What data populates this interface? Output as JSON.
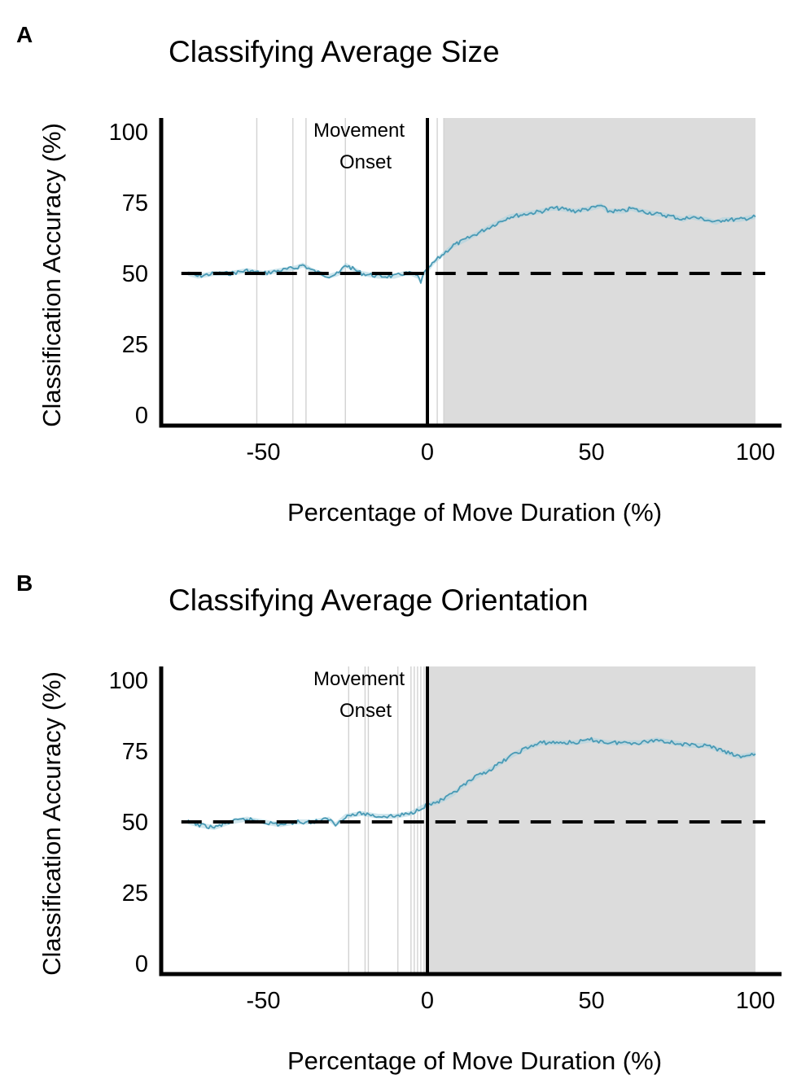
{
  "chart_data": [
    {
      "type": "line",
      "panel": "A",
      "title": "Classifying Average Size",
      "xlabel": "Percentage of Move Duration (%)",
      "ylabel": "Classification Accuracy (%)",
      "xlim": [
        -80,
        108
      ],
      "ylim": [
        0,
        105
      ],
      "xticks": [
        -50,
        0,
        50,
        100
      ],
      "yticks": [
        0,
        25,
        50,
        75,
        100
      ],
      "xtick_labels": [
        "-50",
        "0",
        "50",
        "100"
      ],
      "ytick_labels": [
        "0",
        "25",
        "50",
        "75",
        "100"
      ],
      "chance_level": 50,
      "onset_x": 0,
      "annotation_lines": [
        "Movement",
        "Onset"
      ],
      "significant_shade": [
        5,
        100
      ],
      "significant_lines": [
        -52,
        -41,
        -37,
        -25,
        3,
        5
      ],
      "series": [
        {
          "color": "#4a9ab5",
          "x": [
            -73,
            -70,
            -65,
            -60,
            -55,
            -50,
            -45,
            -40,
            -38,
            -35,
            -30,
            -27,
            -25,
            -20,
            -15,
            -10,
            -7,
            -5,
            -3,
            -2,
            -1,
            0,
            2,
            5,
            8,
            10,
            15,
            20,
            25,
            30,
            35,
            38,
            40,
            45,
            50,
            53,
            55,
            60,
            62,
            65,
            70,
            75,
            78,
            80,
            85,
            88,
            90,
            95,
            100
          ],
          "y": [
            50,
            49,
            50,
            50,
            51,
            50,
            51,
            52,
            53,
            51,
            49,
            50,
            53,
            50,
            49,
            49,
            50,
            50,
            49,
            47,
            50,
            51,
            54,
            57,
            60,
            61,
            64,
            67,
            70,
            71,
            72,
            73,
            73,
            72,
            73,
            74,
            72,
            72,
            73,
            72,
            71,
            70,
            69,
            70,
            69,
            68,
            69,
            69,
            70
          ]
        }
      ]
    },
    {
      "type": "line",
      "panel": "B",
      "title": "Classifying Average Orientation",
      "xlabel": "Percentage of Move Duration (%)",
      "ylabel": "Classification Accuracy (%)",
      "xlim": [
        -80,
        108
      ],
      "ylim": [
        0,
        105
      ],
      "xticks": [
        -50,
        0,
        50,
        100
      ],
      "yticks": [
        0,
        25,
        50,
        75,
        100
      ],
      "xtick_labels": [
        "-50",
        "0",
        "50",
        "100"
      ],
      "ytick_labels": [
        "0",
        "25",
        "50",
        "75",
        "100"
      ],
      "chance_level": 50,
      "onset_x": 0,
      "annotation_lines": [
        "Movement",
        "Onset"
      ],
      "significant_shade": [
        0,
        100
      ],
      "significant_lines": [
        -24,
        -19,
        -18,
        -9,
        -5,
        -4,
        -3,
        -2,
        -1
      ],
      "series": [
        {
          "color": "#4a9ab5",
          "x": [
            -73,
            -70,
            -65,
            -60,
            -55,
            -50,
            -45,
            -40,
            -35,
            -30,
            -28,
            -25,
            -20,
            -15,
            -10,
            -5,
            -2,
            0,
            3,
            5,
            8,
            10,
            15,
            20,
            25,
            30,
            35,
            40,
            45,
            50,
            55,
            60,
            65,
            70,
            75,
            80,
            85,
            90,
            95,
            100
          ],
          "y": [
            50,
            49,
            48,
            50,
            51,
            50,
            49,
            50,
            50,
            51,
            49,
            52,
            53,
            52,
            52,
            53,
            55,
            56,
            57,
            58,
            60,
            62,
            66,
            69,
            73,
            76,
            78,
            78,
            78,
            79,
            78,
            78,
            78,
            79,
            78,
            77,
            77,
            75,
            73,
            74
          ]
        }
      ]
    }
  ]
}
